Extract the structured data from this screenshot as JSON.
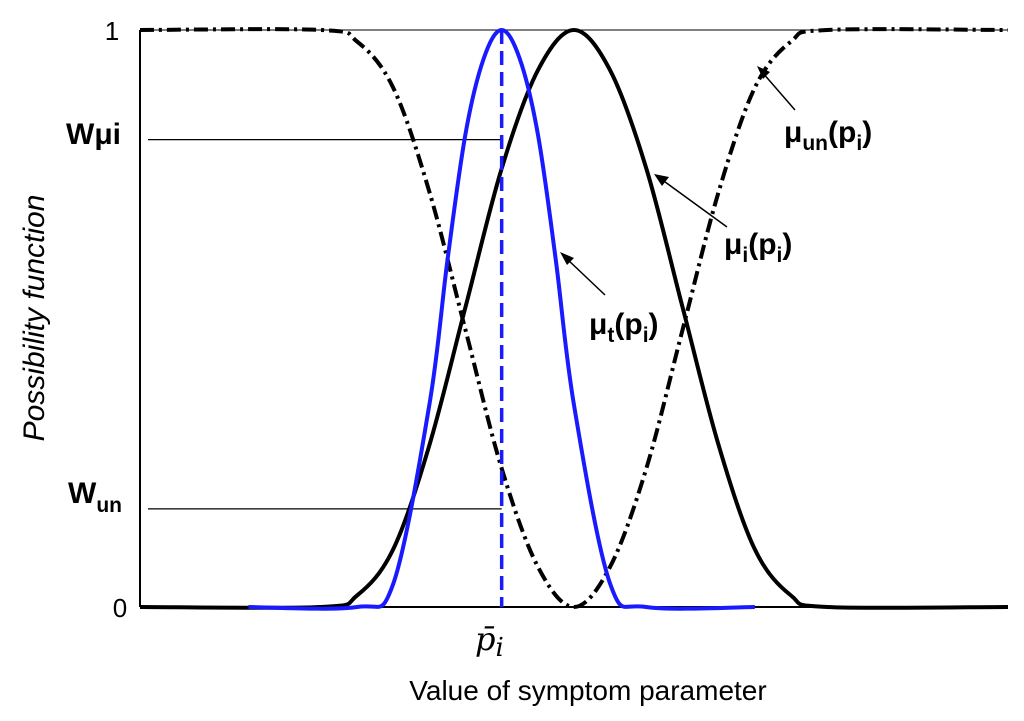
{
  "chart_data": {
    "type": "line",
    "xlabel": "Value of symptom parameter",
    "ylabel": "Possibility function",
    "x_ticks": [
      {
        "x": 0,
        "label": "p̄",
        "sub": "i"
      }
    ],
    "y_ticks": [
      "1",
      "0"
    ],
    "ylim": [
      0,
      1
    ],
    "xlim": [
      -10,
      14
    ],
    "grid": false,
    "series": [
      {
        "name": "μt(pi)",
        "label_main": "μ",
        "label_sub": "t",
        "label_open": "(p",
        "label_psub": "i",
        "label_close": ")",
        "color": "#1a1aff",
        "style": "solid",
        "x": [
          -7.0,
          -4.0,
          -3.0,
          -2.0,
          -1.5,
          -1.0,
          -0.5,
          0.0,
          0.5,
          1.0,
          1.5,
          2.0,
          3.0,
          4.0,
          7.0
        ],
        "y": [
          0.0,
          0.0,
          0.04,
          0.35,
          0.6,
          0.82,
          0.95,
          1.0,
          0.95,
          0.82,
          0.6,
          0.35,
          0.04,
          0.0,
          0.0
        ]
      },
      {
        "name": "μi(pi)",
        "label_main": "μ",
        "label_sub": "i",
        "label_open": "(p",
        "label_psub": "i",
        "label_close": ")",
        "color": "#000000",
        "style": "solid",
        "x": [
          -10.0,
          -5.0,
          -4.0,
          -3.0,
          -2.0,
          -1.0,
          0.0,
          1.0,
          2.0,
          3.0,
          4.0,
          5.0,
          6.0,
          7.0,
          8.0,
          9.0,
          14.0
        ],
        "y": [
          0.0,
          0.0,
          0.02,
          0.1,
          0.28,
          0.52,
          0.76,
          0.93,
          1.0,
          0.93,
          0.76,
          0.52,
          0.28,
          0.1,
          0.02,
          0.0,
          0.0
        ]
      },
      {
        "name": "μun(pi)",
        "label_main": "μ",
        "label_sub": "un",
        "label_open": "(p",
        "label_psub": "i",
        "label_close": ")",
        "color": "#000000",
        "style": "dashdot",
        "x": [
          -10.0,
          -5.0,
          -4.0,
          -3.0,
          -2.0,
          -1.0,
          0.0,
          1.0,
          2.0,
          3.0,
          4.0,
          5.0,
          6.0,
          7.0,
          8.0,
          9.0,
          14.0
        ],
        "y": [
          1.0,
          1.0,
          0.98,
          0.9,
          0.72,
          0.48,
          0.24,
          0.07,
          0.0,
          0.07,
          0.24,
          0.48,
          0.72,
          0.9,
          0.98,
          1.0,
          1.0
        ]
      }
    ],
    "reference_levels": [
      {
        "name": "Wμi",
        "main": "Wμi",
        "sub": "",
        "y": 0.81
      },
      {
        "name": "Wun",
        "main": "W",
        "sub": "un",
        "y": 0.17
      }
    ],
    "vertical_marker": {
      "x": 0,
      "color": "#1a1aff",
      "style": "dashed"
    }
  }
}
